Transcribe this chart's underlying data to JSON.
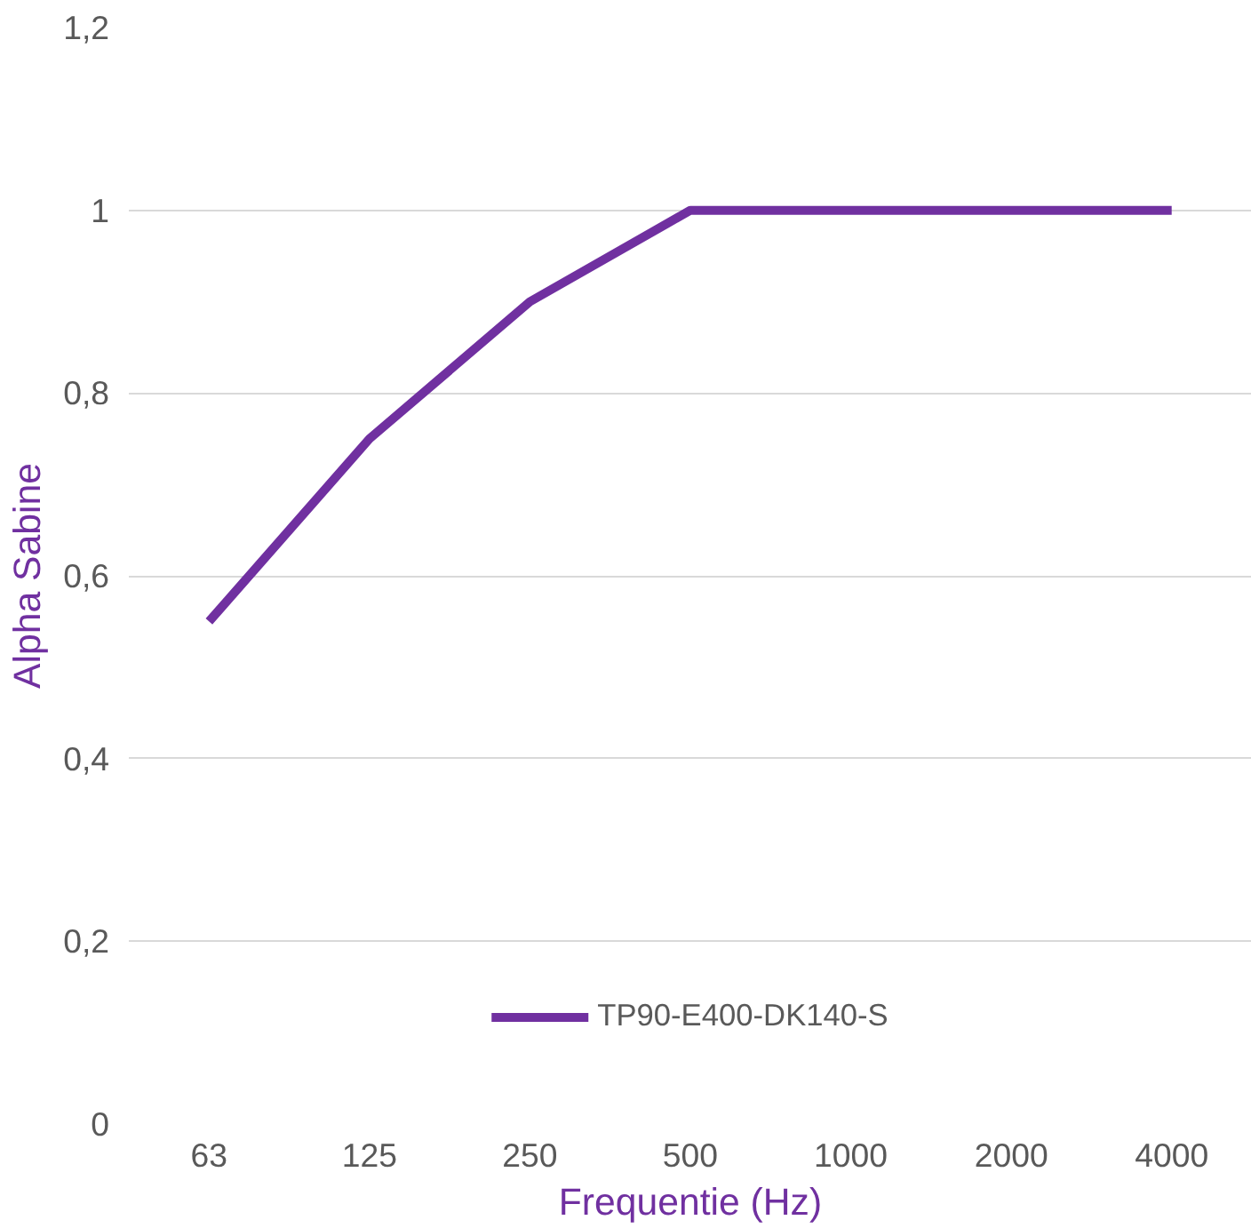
{
  "chart_data": {
    "type": "line",
    "xlabel": "Frequentie (Hz)",
    "ylabel": "Alpha Sabine",
    "categories": [
      "63",
      "125",
      "250",
      "500",
      "1000",
      "2000",
      "4000"
    ],
    "series": [
      {
        "name": "TP90-E400-DK140-S",
        "color": "#7030a0",
        "values": [
          0.55,
          0.75,
          0.9,
          1,
          1,
          1,
          1
        ]
      }
    ],
    "ylim": [
      0,
      1.2
    ],
    "yticks": [
      {
        "value": 0,
        "label": "0"
      },
      {
        "value": 0.2,
        "label": "0,2"
      },
      {
        "value": 0.4,
        "label": "0,4"
      },
      {
        "value": 0.6,
        "label": "0,6"
      },
      {
        "value": 0.8,
        "label": "0,8"
      },
      {
        "value": 1,
        "label": "1"
      },
      {
        "value": 1.2,
        "label": "1,2"
      }
    ],
    "grid": "y",
    "legend": "bottom",
    "marker": "none",
    "line_style": "solid"
  }
}
